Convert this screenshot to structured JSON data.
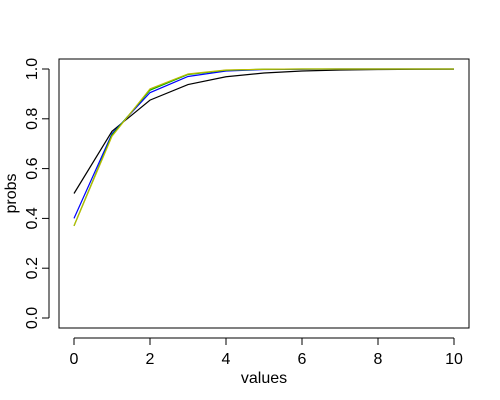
{
  "chart_data": {
    "type": "line",
    "title": "",
    "xlabel": "values",
    "ylabel": "probs",
    "xlim": [
      0,
      10
    ],
    "ylim": [
      0,
      1
    ],
    "x_ticks": [
      "0",
      "2",
      "4",
      "6",
      "8",
      "10"
    ],
    "y_ticks": [
      "0.0",
      "0.2",
      "0.4",
      "0.6",
      "0.8",
      "1.0"
    ],
    "grid": false,
    "x": [
      0,
      1,
      2,
      3,
      4,
      5,
      6,
      7,
      8,
      9,
      10
    ],
    "series": [
      {
        "color": "#000000",
        "values": [
          0.5,
          0.75,
          0.875,
          0.9375,
          0.96875,
          0.984,
          0.992,
          0.996,
          0.998,
          0.999,
          0.9995
        ]
      },
      {
        "color": "#0000ff",
        "values": [
          0.4,
          0.74,
          0.905,
          0.97,
          0.992,
          0.998,
          0.999,
          1.0,
          1.0,
          1.0,
          1.0
        ]
      },
      {
        "color": "#00aa00",
        "values": [
          0.37,
          0.735,
          0.915,
          0.978,
          0.995,
          0.999,
          1.0,
          1.0,
          1.0,
          1.0,
          1.0
        ]
      },
      {
        "color": "#bbbb00",
        "values": [
          0.37,
          0.73,
          0.92,
          0.98,
          0.996,
          0.999,
          1.0,
          1.0,
          1.0,
          1.0,
          1.0
        ]
      }
    ]
  }
}
